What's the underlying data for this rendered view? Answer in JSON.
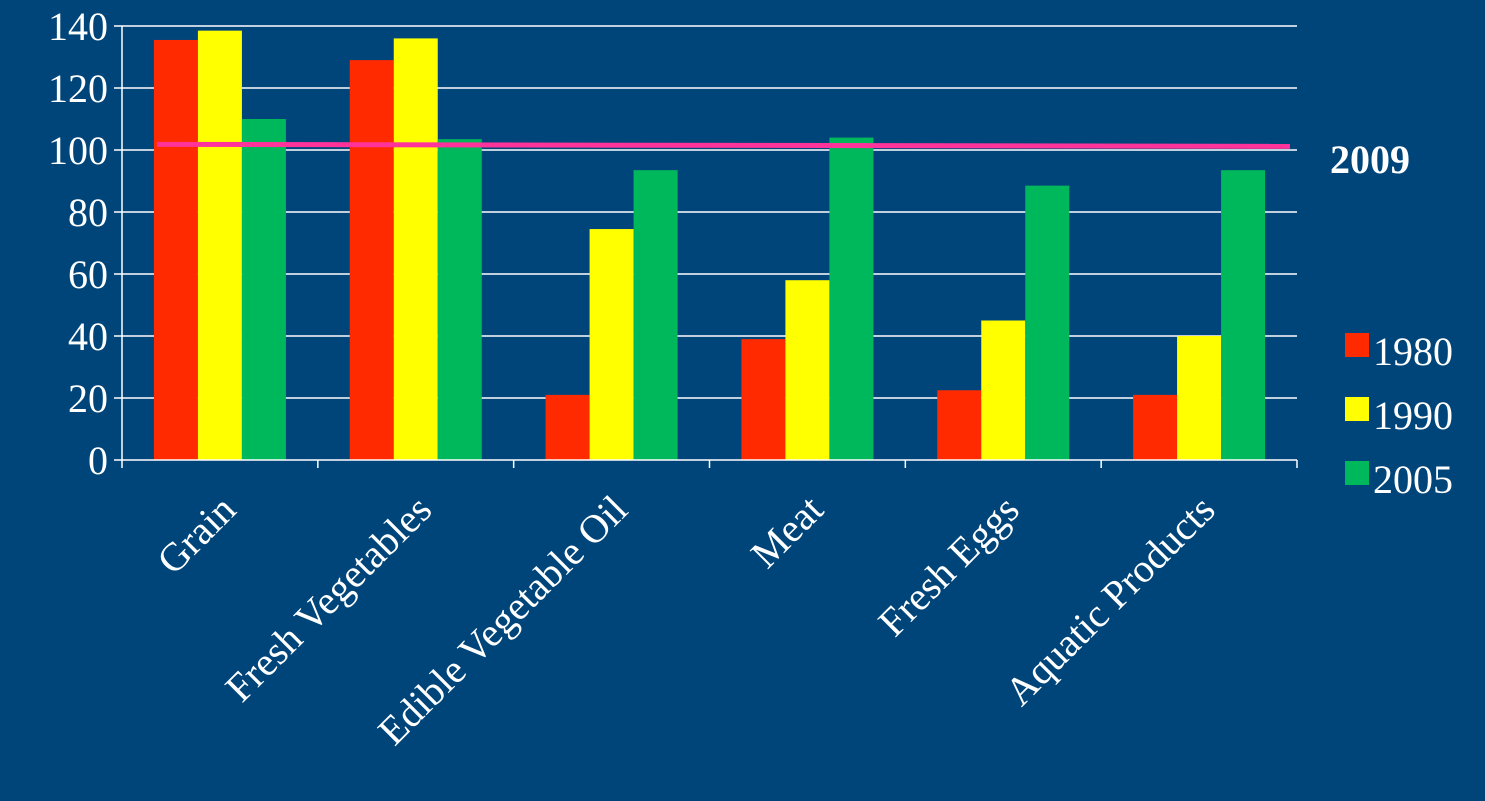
{
  "colors": {
    "background": "#00457a",
    "axis": "#ffffff",
    "grid": "#ffffff",
    "reference_line": "#ff3399"
  },
  "chart_data": {
    "type": "bar",
    "categories": [
      "Grain",
      "Fresh Vegetables",
      "Edible Vegetable Oil",
      "Meat",
      "Fresh Eggs",
      "Aquatic Products"
    ],
    "series": [
      {
        "name": "1980",
        "color": "#ff2a00",
        "values": [
          135.5,
          129,
          21,
          39,
          22.5,
          21
        ]
      },
      {
        "name": "1990",
        "color": "#ffff00",
        "values": [
          138.5,
          136,
          74.5,
          58,
          45,
          40
        ]
      },
      {
        "name": "2005",
        "color": "#00b85c",
        "values": [
          110,
          103.5,
          93.5,
          104,
          88.5,
          93.5
        ]
      }
    ],
    "reference_line": {
      "label": "2009",
      "value": 101.5
    },
    "ylim": [
      0,
      140
    ],
    "yticks": [
      0,
      20,
      40,
      60,
      80,
      100,
      120,
      140
    ],
    "grid": true,
    "legend_position": "right",
    "title": "",
    "xlabel": "",
    "ylabel": ""
  }
}
